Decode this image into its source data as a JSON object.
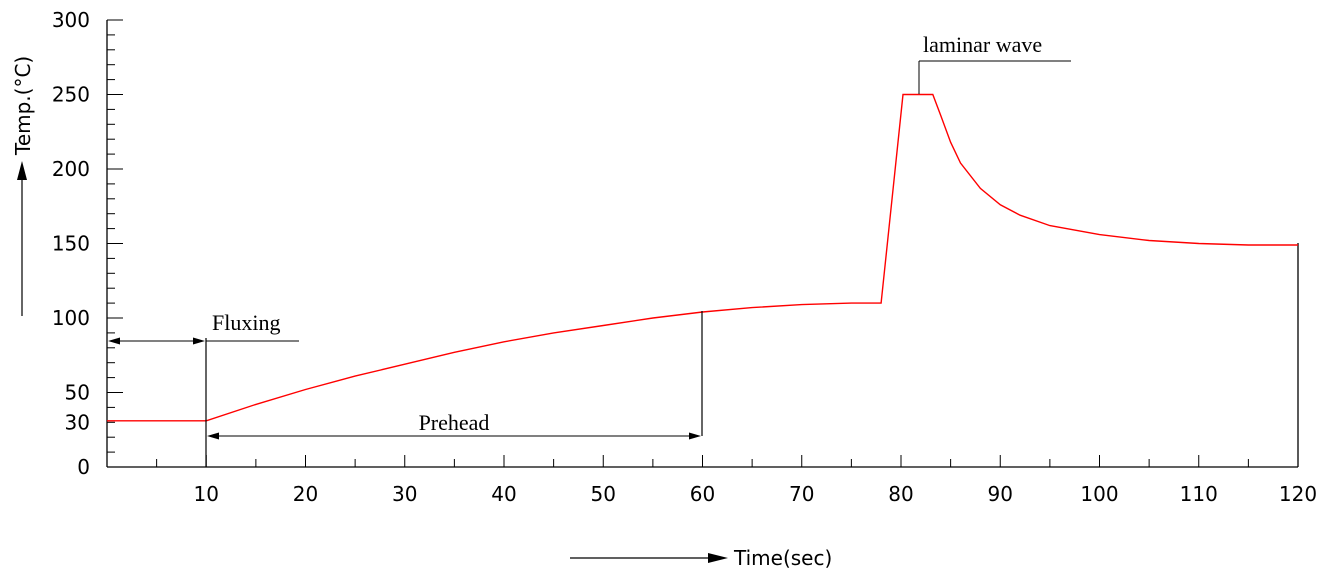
{
  "chart_data": {
    "type": "line",
    "xlabel": "Time(sec)",
    "ylabel": "Temp.(°C)",
    "xlim": [
      0,
      120
    ],
    "ylim": [
      0,
      300
    ],
    "x_ticks": [
      10,
      20,
      30,
      40,
      50,
      60,
      70,
      80,
      90,
      100,
      110,
      120
    ],
    "y_ticks": [
      0,
      30,
      50,
      100,
      150,
      200,
      250,
      300
    ],
    "grid": false,
    "line_color": "#ff0000",
    "series": [
      {
        "x": [
          0,
          10,
          15,
          20,
          25,
          30,
          35,
          40,
          45,
          50,
          55,
          60,
          65,
          70,
          75,
          78,
          80.2,
          83.2,
          84,
          85,
          86,
          88,
          90,
          92,
          95,
          100,
          105,
          110,
          115,
          120
        ],
        "y": [
          31,
          31,
          42,
          52,
          61,
          69,
          77,
          84,
          90,
          95,
          100,
          104,
          107,
          109,
          110,
          110,
          250,
          250,
          236,
          218,
          204,
          187,
          176,
          169,
          162,
          156,
          152,
          150,
          149,
          149
        ]
      }
    ],
    "annotations": [
      {
        "id": "fluxing",
        "text": "Fluxing"
      },
      {
        "id": "prehead",
        "text": "Prehead"
      },
      {
        "id": "laminar",
        "text": "laminar wave"
      }
    ]
  }
}
